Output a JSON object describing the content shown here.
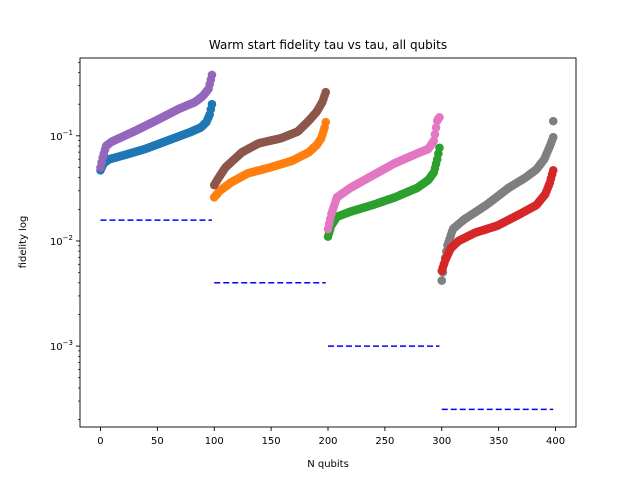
{
  "chart_data": {
    "type": "scatter",
    "title": "Warm start fidelity tau vs tau, all qubits",
    "xlabel": "N qubits",
    "ylabel": "fidelity log",
    "xlim": [
      -18,
      418
    ],
    "ylim": [
      0.00017,
      0.55
    ],
    "yscale": "log",
    "xticks": [
      0,
      50,
      100,
      150,
      200,
      250,
      300,
      350,
      400
    ],
    "yticks": [
      {
        "value": 0.001,
        "label": "10",
        "exp": "−3"
      },
      {
        "value": 0.01,
        "label": "10",
        "exp": "−2"
      },
      {
        "value": 0.1,
        "label": "10",
        "exp": "−1"
      }
    ],
    "grid": false,
    "legend": "none",
    "series": [
      {
        "color": "#1f77b4",
        "x_start": 0,
        "x_end": 98,
        "profile": [
          [
            0,
            0.047
          ],
          [
            0.03,
            0.055
          ],
          [
            0.08,
            0.06
          ],
          [
            0.2,
            0.065
          ],
          [
            0.4,
            0.075
          ],
          [
            0.6,
            0.09
          ],
          [
            0.8,
            0.108
          ],
          [
            0.9,
            0.12
          ],
          [
            0.95,
            0.135
          ],
          [
            0.98,
            0.16
          ],
          [
            1.0,
            0.2
          ]
        ]
      },
      {
        "color": "#9467bd",
        "x_start": 0,
        "x_end": 98,
        "profile": [
          [
            0,
            0.05
          ],
          [
            0.02,
            0.062
          ],
          [
            0.05,
            0.08
          ],
          [
            0.1,
            0.088
          ],
          [
            0.3,
            0.11
          ],
          [
            0.5,
            0.14
          ],
          [
            0.7,
            0.18
          ],
          [
            0.85,
            0.21
          ],
          [
            0.92,
            0.24
          ],
          [
            0.97,
            0.28
          ],
          [
            1.0,
            0.38
          ]
        ]
      },
      {
        "color": "#ff7f0e",
        "x_start": 100,
        "x_end": 198,
        "profile": [
          [
            0,
            0.026
          ],
          [
            0.05,
            0.03
          ],
          [
            0.15,
            0.036
          ],
          [
            0.3,
            0.044
          ],
          [
            0.5,
            0.05
          ],
          [
            0.7,
            0.058
          ],
          [
            0.85,
            0.07
          ],
          [
            0.92,
            0.082
          ],
          [
            0.96,
            0.095
          ],
          [
            0.99,
            0.12
          ],
          [
            1.0,
            0.135
          ]
        ]
      },
      {
        "color": "#8c564b",
        "x_start": 100,
        "x_end": 198,
        "profile": [
          [
            0,
            0.034
          ],
          [
            0.04,
            0.04
          ],
          [
            0.1,
            0.05
          ],
          [
            0.25,
            0.07
          ],
          [
            0.4,
            0.085
          ],
          [
            0.6,
            0.095
          ],
          [
            0.75,
            0.11
          ],
          [
            0.85,
            0.14
          ],
          [
            0.92,
            0.17
          ],
          [
            0.97,
            0.21
          ],
          [
            1.0,
            0.26
          ]
        ]
      },
      {
        "color": "#2ca02c",
        "x_start": 200,
        "x_end": 298,
        "profile": [
          [
            0,
            0.011
          ],
          [
            0.03,
            0.014
          ],
          [
            0.08,
            0.017
          ],
          [
            0.2,
            0.019
          ],
          [
            0.4,
            0.022
          ],
          [
            0.6,
            0.026
          ],
          [
            0.8,
            0.032
          ],
          [
            0.9,
            0.038
          ],
          [
            0.95,
            0.045
          ],
          [
            0.98,
            0.06
          ],
          [
            1.0,
            0.077
          ]
        ]
      },
      {
        "color": "#e377c2",
        "x_start": 200,
        "x_end": 298,
        "profile": [
          [
            0,
            0.013
          ],
          [
            0.03,
            0.018
          ],
          [
            0.08,
            0.026
          ],
          [
            0.2,
            0.032
          ],
          [
            0.4,
            0.042
          ],
          [
            0.6,
            0.055
          ],
          [
            0.8,
            0.068
          ],
          [
            0.9,
            0.075
          ],
          [
            0.95,
            0.09
          ],
          [
            0.98,
            0.14
          ],
          [
            1.0,
            0.15
          ]
        ]
      },
      {
        "color": "#7f7f7f",
        "x_start": 300,
        "x_end": 398,
        "profile": [
          [
            0,
            0.0042
          ],
          [
            0.02,
            0.006
          ],
          [
            0.05,
            0.009
          ],
          [
            0.1,
            0.013
          ],
          [
            0.2,
            0.016
          ],
          [
            0.4,
            0.022
          ],
          [
            0.6,
            0.032
          ],
          [
            0.75,
            0.04
          ],
          [
            0.85,
            0.048
          ],
          [
            0.92,
            0.06
          ],
          [
            0.97,
            0.08
          ],
          [
            1.0,
            0.097
          ]
        ]
      },
      {
        "color": "#d62728",
        "x_start": 300,
        "x_end": 398,
        "profile": [
          [
            0,
            0.0052
          ],
          [
            0.03,
            0.0065
          ],
          [
            0.08,
            0.0085
          ],
          [
            0.15,
            0.01
          ],
          [
            0.3,
            0.012
          ],
          [
            0.5,
            0.014
          ],
          [
            0.7,
            0.018
          ],
          [
            0.85,
            0.022
          ],
          [
            0.93,
            0.028
          ],
          [
            0.97,
            0.036
          ],
          [
            1.0,
            0.047
          ]
        ]
      },
      {
        "color": "#7f7f7f",
        "points": [
          [
            398,
            0.138
          ]
        ]
      }
    ],
    "reference_lines": [
      {
        "x": [
          0,
          98
        ],
        "y": 0.0158,
        "color": "#0000ff"
      },
      {
        "x": [
          100,
          198
        ],
        "y": 0.004,
        "color": "#0000ff"
      },
      {
        "x": [
          200,
          298
        ],
        "y": 0.001,
        "color": "#0000ff"
      },
      {
        "x": [
          300,
          398
        ],
        "y": 0.00025,
        "color": "#0000ff"
      }
    ]
  }
}
